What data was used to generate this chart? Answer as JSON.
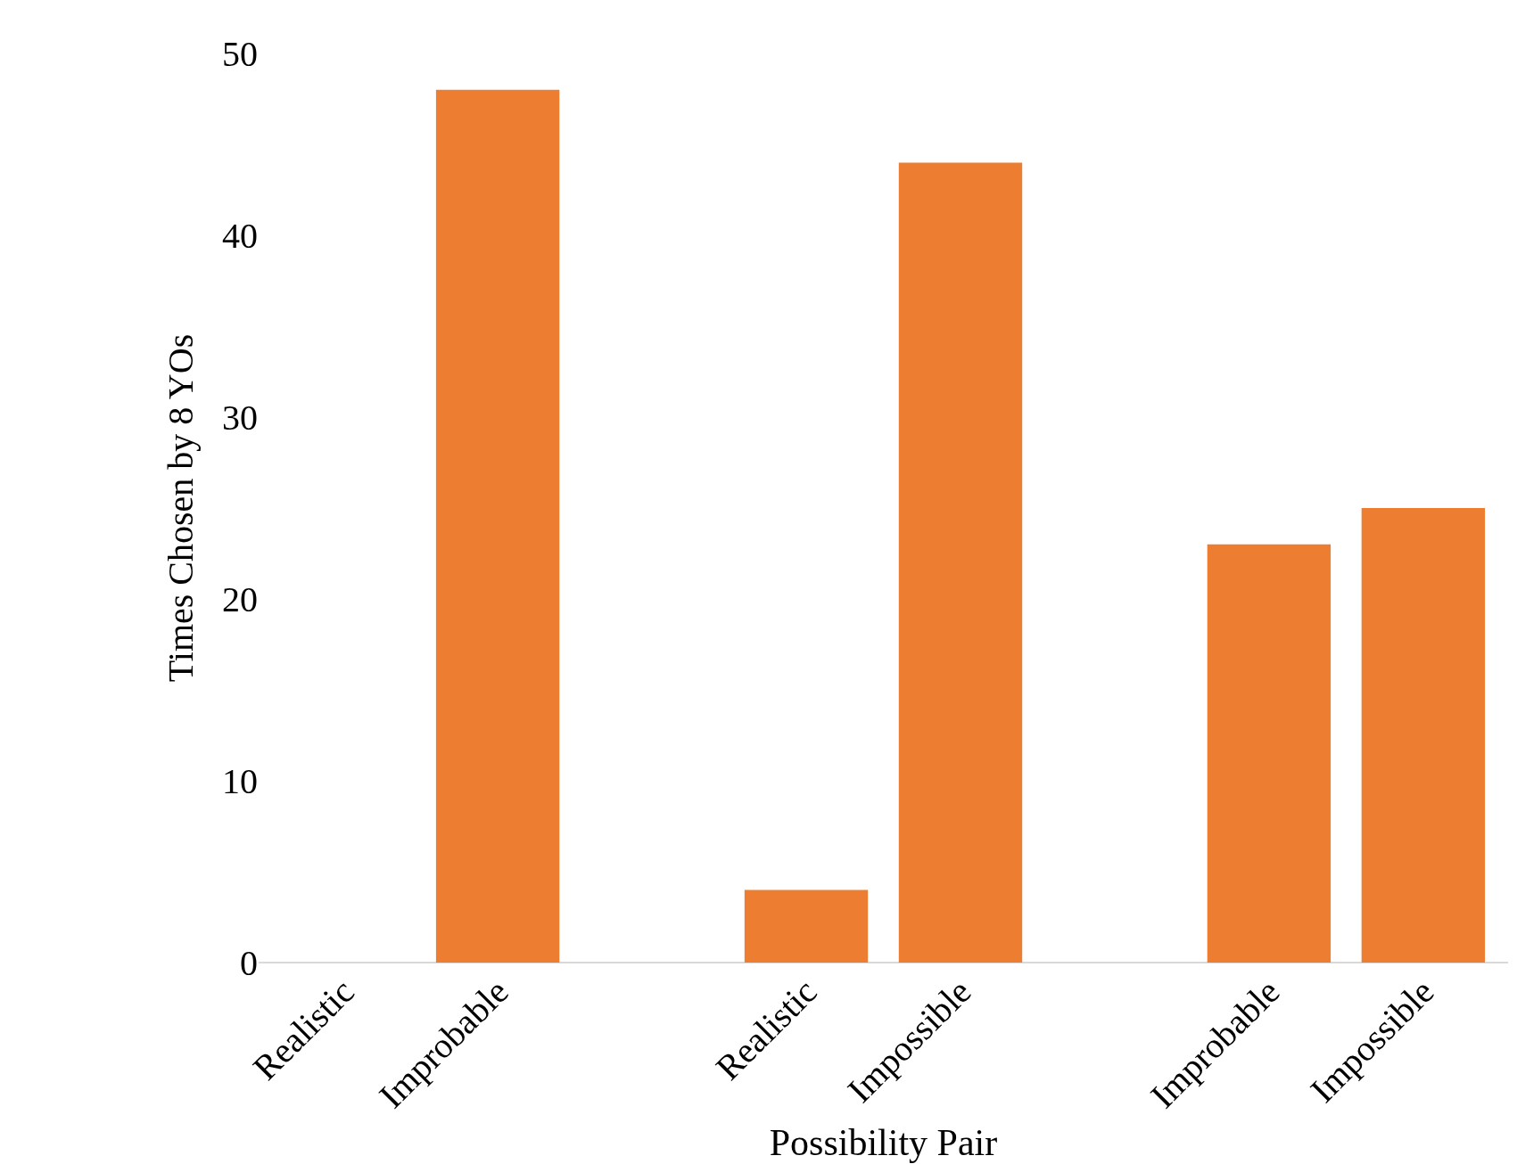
{
  "chart_data": {
    "type": "bar",
    "xlabel": "Possibility Pair",
    "ylabel": "Times Chosen by 8 YOs",
    "categories": [
      "Realistic",
      "Improbable",
      null,
      "Realistic",
      "Impossible",
      null,
      "Improbable",
      "Impossible"
    ],
    "values": [
      0,
      48,
      null,
      4,
      44,
      null,
      23,
      25
    ],
    "color": "#ed7d31",
    "ylim": [
      0,
      50
    ],
    "yticks": [
      0,
      10,
      20,
      30,
      40,
      50
    ]
  }
}
